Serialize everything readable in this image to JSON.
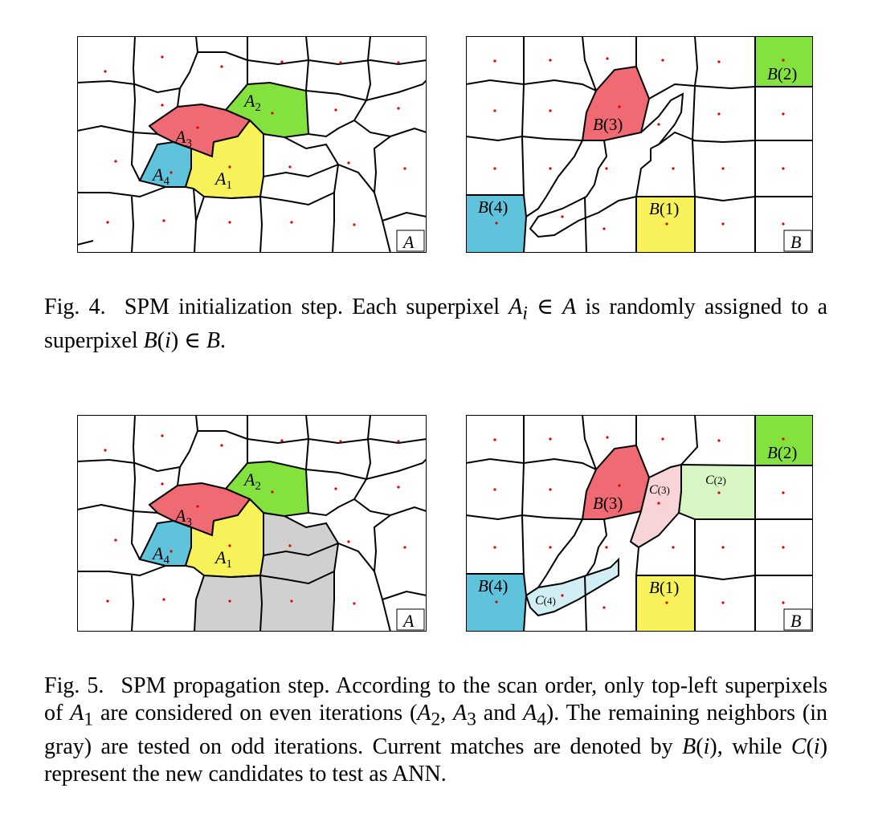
{
  "figures": [
    {
      "label": "Fig. 4.",
      "caption_html": "SPM initialization step. Each superpixel <span class=\"m\">A<sub>i</sub></span> ∈ <span class=\"m\">A</span> is randomly assigned to a superpixel <span class=\"m\">B</span>(<span class=\"m\">i</span>) ∈ <span class=\"m\">B</span>.",
      "panelA": {
        "box_label": "A",
        "regions": [
          {
            "label": "A2",
            "color": "#84e23e"
          },
          {
            "label": "A3",
            "color": "#ef6a72"
          },
          {
            "label": "A4",
            "color": "#5fc3dc"
          },
          {
            "label": "A1",
            "color": "#f7f25a"
          }
        ]
      },
      "panelB": {
        "box_label": "B",
        "regions": [
          {
            "label": "B(2)",
            "color": "#84e23e"
          },
          {
            "label": "B(3)",
            "color": "#ef6a72"
          },
          {
            "label": "B(4)",
            "color": "#5fc3dc"
          },
          {
            "label": "B(1)",
            "color": "#f7f25a"
          }
        ]
      }
    },
    {
      "label": "Fig. 5.",
      "caption_html": "SPM propagation step. According to the scan order, only top-left superpixels of <span class=\"m\">A</span><sub>1</sub> are considered on even iterations (<span class=\"m\">A</span><sub>2</sub>, <span class=\"m\">A</span><sub>3</sub> and <span class=\"m\">A</span><sub>4</sub>). The remaining neighbors (in gray) are tested on odd iterations. Current matches are denoted by <span class=\"m\">B</span>(<span class=\"m\">i</span>), while <span class=\"m\">C</span>(<span class=\"m\">i</span>) represent the new candidates to test as ANN.",
      "panelA": {
        "box_label": "A",
        "gray_color": "#d0d0d0",
        "regions": [
          {
            "label": "A2",
            "color": "#84e23e"
          },
          {
            "label": "A3",
            "color": "#ef6a72"
          },
          {
            "label": "A4",
            "color": "#5fc3dc"
          },
          {
            "label": "A1",
            "color": "#f7f25a"
          }
        ]
      },
      "panelB": {
        "box_label": "B",
        "regions": [
          {
            "label": "B(2)",
            "color": "#84e23e"
          },
          {
            "label": "B(3)",
            "color": "#ef6a72"
          },
          {
            "label": "B(4)",
            "color": "#5fc3dc"
          },
          {
            "label": "B(1)",
            "color": "#f7f25a"
          },
          {
            "label": "C(3)",
            "color": "#f9d4d6"
          },
          {
            "label": "C(2)",
            "color": "#d8f5c4"
          },
          {
            "label": "C(4)",
            "color": "#d2eef5"
          }
        ]
      }
    }
  ]
}
